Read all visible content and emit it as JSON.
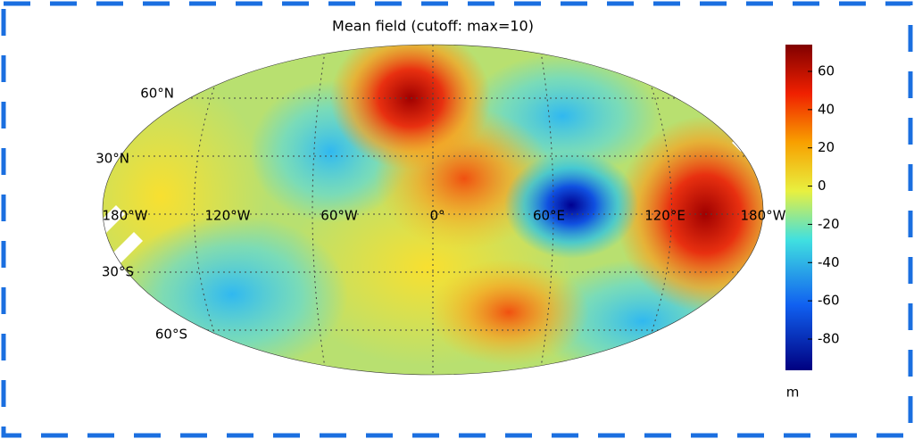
{
  "title": "Mean field (cutoff: max=10)",
  "map": {
    "lat_labels": [
      "60°N",
      "30°N",
      "30°S",
      "60°S"
    ],
    "lon_labels": [
      "180°W",
      "120°W",
      "60°W",
      "0°",
      "60°E",
      "120°E",
      "180°W"
    ]
  },
  "colorbar": {
    "ticks": [
      60,
      40,
      20,
      0,
      -20,
      -40,
      -60,
      -80
    ],
    "unit": "m"
  }
}
